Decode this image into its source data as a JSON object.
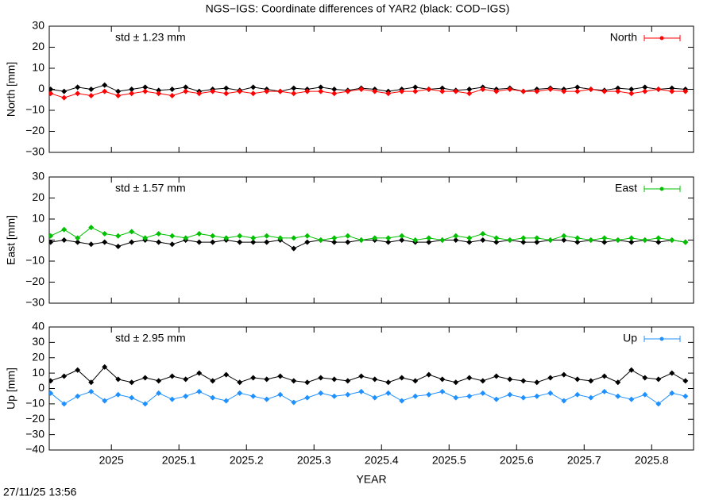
{
  "title": "NGS−IGS: Coordinate differences of YAR2 (black: COD−IGS)",
  "timestamp": "27/11/25 13:56",
  "chart_data": [
    {
      "type": "line",
      "ylabel": "North [mm]",
      "annotation": "std ± 1.23 mm",
      "annotation_color": "#ff0000",
      "xlim": [
        2024.908,
        2025.862
      ],
      "xticks": [
        2025,
        2025.1,
        2025.2,
        2025.3,
        2025.4,
        2025.5,
        2025.6,
        2025.7,
        2025.8
      ],
      "ylim": [
        -30,
        30
      ],
      "yticks": [
        {
          "value": -30,
          "label": "−30"
        },
        {
          "value": -20,
          "label": "−20"
        },
        {
          "value": -10,
          "label": "−10"
        },
        0,
        10,
        20,
        30
      ],
      "legend": "top-right",
      "x": [
        2024.91,
        2024.93,
        2024.95,
        2024.97,
        2024.99,
        2025.01,
        2025.03,
        2025.05,
        2025.07,
        2025.09,
        2025.11,
        2025.13,
        2025.15,
        2025.17,
        2025.19,
        2025.21,
        2025.23,
        2025.25,
        2025.27,
        2025.29,
        2025.31,
        2025.33,
        2025.35,
        2025.37,
        2025.39,
        2025.41,
        2025.43,
        2025.45,
        2025.47,
        2025.49,
        2025.51,
        2025.53,
        2025.55,
        2025.57,
        2025.59,
        2025.61,
        2025.63,
        2025.65,
        2025.67,
        2025.69,
        2025.71,
        2025.73,
        2025.75,
        2025.77,
        2025.79,
        2025.81,
        2025.83,
        2025.85
      ],
      "series": [
        {
          "color": "#000000",
          "values": [
            0,
            -1,
            1,
            0,
            2,
            -1,
            0,
            1,
            -0.5,
            0,
            1,
            -1,
            0,
            0.5,
            -0.5,
            1,
            0,
            -1,
            0.5,
            0,
            1,
            0,
            -0.5,
            0.5,
            0,
            -1,
            0,
            1,
            0,
            0.5,
            -0.5,
            0,
            1,
            0,
            0.5,
            -1,
            0,
            0.5,
            0,
            1,
            0,
            -0.5,
            0.5,
            0,
            1,
            0,
            0.5,
            0
          ]
        },
        {
          "name": "North",
          "color": "#ff0000",
          "values": [
            -2,
            -4,
            -2,
            -3,
            -1,
            -3,
            -2,
            -1,
            -2,
            -3,
            -1,
            -2,
            -1,
            -2,
            -1,
            -2,
            -1,
            -1,
            -2,
            -1,
            -1,
            -2,
            -1,
            0,
            -1,
            -2,
            -1,
            -1,
            0,
            -1,
            -1,
            -2,
            0,
            -1,
            0,
            -1,
            -1,
            0,
            -1,
            -1,
            0,
            -1,
            -1,
            -2,
            -1,
            0,
            -1,
            -1
          ]
        }
      ]
    },
    {
      "type": "line",
      "ylabel": "East [mm]",
      "annotation": "std ± 1.57 mm",
      "annotation_color": "#00c000",
      "xlim": [
        2024.908,
        2025.862
      ],
      "xticks": [
        2025,
        2025.1,
        2025.2,
        2025.3,
        2025.4,
        2025.5,
        2025.6,
        2025.7,
        2025.8
      ],
      "ylim": [
        -30,
        30
      ],
      "yticks": [
        {
          "value": -30,
          "label": "−30"
        },
        {
          "value": -20,
          "label": "−20"
        },
        {
          "value": -10,
          "label": "−10"
        },
        0,
        10,
        20,
        30
      ],
      "legend": "top-right",
      "x": [
        2024.91,
        2024.93,
        2024.95,
        2024.97,
        2024.99,
        2025.01,
        2025.03,
        2025.05,
        2025.07,
        2025.09,
        2025.11,
        2025.13,
        2025.15,
        2025.17,
        2025.19,
        2025.21,
        2025.23,
        2025.25,
        2025.27,
        2025.29,
        2025.31,
        2025.33,
        2025.35,
        2025.37,
        2025.39,
        2025.41,
        2025.43,
        2025.45,
        2025.47,
        2025.49,
        2025.51,
        2025.53,
        2025.55,
        2025.57,
        2025.59,
        2025.61,
        2025.63,
        2025.65,
        2025.67,
        2025.69,
        2025.71,
        2025.73,
        2025.75,
        2025.77,
        2025.79,
        2025.81,
        2025.83,
        2025.85
      ],
      "series": [
        {
          "color": "#000000",
          "values": [
            -1,
            0,
            -1,
            -2,
            -1,
            -3,
            -1,
            0,
            -1,
            -2,
            0,
            -1,
            -1,
            0,
            -1,
            -1,
            -1,
            0,
            -4,
            -1,
            0,
            -1,
            -1,
            0,
            0,
            -1,
            0,
            -1,
            -1,
            0,
            0,
            -1,
            0,
            -1,
            0,
            -1,
            -1,
            0,
            0,
            -1,
            0,
            -1,
            0,
            -1,
            0,
            -1,
            0,
            -1
          ]
        },
        {
          "name": "East",
          "color": "#00c000",
          "values": [
            2,
            5,
            1,
            6,
            3,
            2,
            4,
            1,
            3,
            2,
            1,
            3,
            2,
            1,
            2,
            1,
            2,
            1,
            1,
            2,
            0,
            1,
            2,
            0,
            1,
            1,
            2,
            0,
            1,
            0,
            2,
            1,
            3,
            1,
            0,
            1,
            1,
            0,
            2,
            1,
            0,
            1,
            0,
            1,
            0,
            1,
            0,
            -1
          ]
        }
      ]
    },
    {
      "type": "line",
      "ylabel": "Up [mm]",
      "xlabel": "YEAR",
      "annotation": "std ± 2.95 mm",
      "annotation_color": "#1e90ff",
      "xlim": [
        2024.908,
        2025.862
      ],
      "xticks": [
        2025,
        2025.1,
        2025.2,
        2025.3,
        2025.4,
        2025.5,
        2025.6,
        2025.7,
        2025.8
      ],
      "ylim": [
        -40,
        40
      ],
      "yticks": [
        {
          "value": -40,
          "label": "−40"
        },
        {
          "value": -30,
          "label": "−30"
        },
        {
          "value": -20,
          "label": "−20"
        },
        {
          "value": -10,
          "label": "−10"
        },
        0,
        10,
        20,
        30,
        40
      ],
      "legend": "top-right",
      "x": [
        2024.91,
        2024.93,
        2024.95,
        2024.97,
        2024.99,
        2025.01,
        2025.03,
        2025.05,
        2025.07,
        2025.09,
        2025.11,
        2025.13,
        2025.15,
        2025.17,
        2025.19,
        2025.21,
        2025.23,
        2025.25,
        2025.27,
        2025.29,
        2025.31,
        2025.33,
        2025.35,
        2025.37,
        2025.39,
        2025.41,
        2025.43,
        2025.45,
        2025.47,
        2025.49,
        2025.51,
        2025.53,
        2025.55,
        2025.57,
        2025.59,
        2025.61,
        2025.63,
        2025.65,
        2025.67,
        2025.69,
        2025.71,
        2025.73,
        2025.75,
        2025.77,
        2025.79,
        2025.81,
        2025.83,
        2025.85
      ],
      "series": [
        {
          "color": "#000000",
          "values": [
            5,
            8,
            12,
            4,
            14,
            6,
            4,
            7,
            5,
            8,
            6,
            10,
            5,
            9,
            4,
            7,
            6,
            8,
            5,
            4,
            7,
            6,
            5,
            8,
            6,
            4,
            7,
            5,
            9,
            6,
            4,
            7,
            5,
            8,
            6,
            5,
            4,
            7,
            9,
            6,
            5,
            8,
            4,
            12,
            7,
            6,
            10,
            5
          ]
        },
        {
          "name": "Up",
          "color": "#1e90ff",
          "values": [
            -3,
            -10,
            -5,
            -2,
            -8,
            -4,
            -6,
            -10,
            -3,
            -7,
            -5,
            -2,
            -6,
            -8,
            -3,
            -5,
            -7,
            -4,
            -9,
            -6,
            -3,
            -5,
            -4,
            -2,
            -6,
            -3,
            -8,
            -5,
            -4,
            -2,
            -6,
            -5,
            -3,
            -7,
            -4,
            -6,
            -5,
            -3,
            -8,
            -4,
            -6,
            -2,
            -5,
            -7,
            -4,
            -10,
            -3,
            -5
          ]
        }
      ]
    }
  ]
}
